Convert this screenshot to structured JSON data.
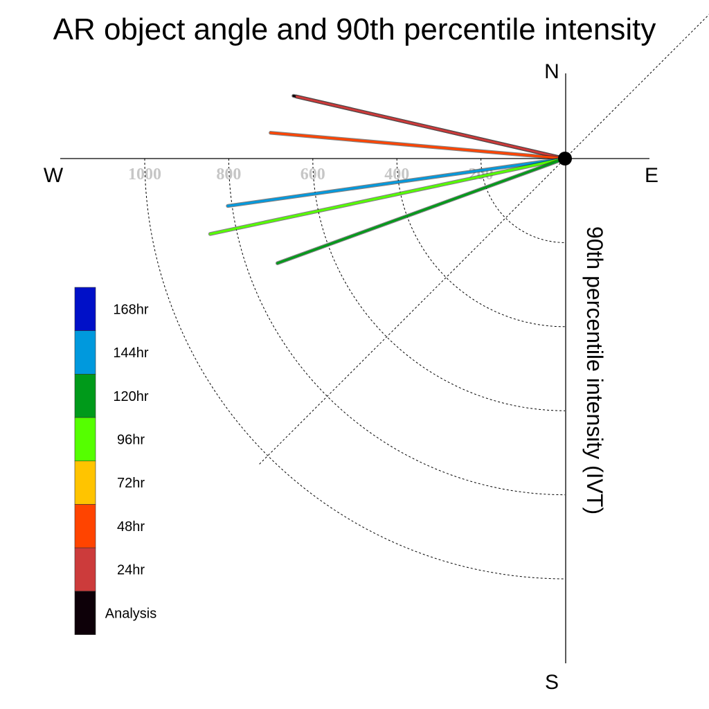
{
  "chart_data": {
    "type": "polar-line",
    "title": "AR object angle and 90th percentile intensity",
    "axis_label": "90th percentile intensity (IVT)",
    "compass": {
      "north": "N",
      "south": "S",
      "east": "E",
      "west": "W"
    },
    "radial_ticks": [
      200,
      400,
      600,
      800,
      1000
    ],
    "radial_tick_labels": [
      "200",
      "400",
      "600",
      "800",
      "1000"
    ],
    "radial_max": 1200,
    "angle_convention": "degrees clockwise from North",
    "grid": true,
    "legend_position": "left",
    "legend": [
      {
        "label": "168hr",
        "color": "#0010c8"
      },
      {
        "label": "144hr",
        "color": "#0099dd"
      },
      {
        "label": "120hr",
        "color": "#009a1a"
      },
      {
        "label": "96hr",
        "color": "#55ff00"
      },
      {
        "label": "72hr",
        "color": "#ffc400"
      },
      {
        "label": "48hr",
        "color": "#ff4400"
      },
      {
        "label": "24hr",
        "color": "#cc3b3b"
      },
      {
        "label": "Analysis",
        "color": "#0d0008"
      }
    ],
    "series": [
      {
        "name": "Analysis",
        "color": "#0d0008",
        "angle": 283,
        "value": 663
      },
      {
        "name": "24hr",
        "color": "#cc3b3b",
        "angle": 283,
        "value": 655
      },
      {
        "name": "48hr",
        "color": "#ff4400",
        "angle": 275,
        "value": 703
      },
      {
        "name": "144hr",
        "color": "#0099dd",
        "angle": 262,
        "value": 810
      },
      {
        "name": "96hr",
        "color": "#55ff00",
        "angle": 258,
        "value": 863
      },
      {
        "name": "120hr",
        "color": "#009a1a",
        "angle": 250,
        "value": 728
      }
    ]
  }
}
